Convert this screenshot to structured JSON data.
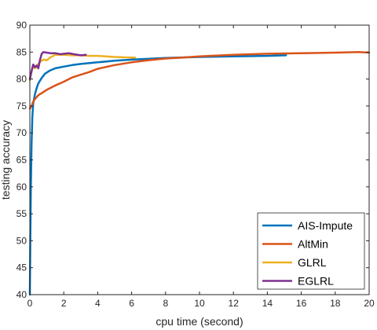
{
  "chart_data": {
    "type": "line",
    "title": "",
    "xlabel": "cpu time (second)",
    "ylabel": "testing accuracy",
    "xlim": [
      0,
      20
    ],
    "ylim": [
      40,
      90
    ],
    "xticks": [
      0,
      2,
      4,
      6,
      8,
      10,
      12,
      14,
      16,
      18,
      20
    ],
    "yticks": [
      40,
      45,
      50,
      55,
      60,
      65,
      70,
      75,
      80,
      85,
      90
    ],
    "grid": false,
    "legend_position": "bottom-right",
    "series": [
      {
        "name": "AIS-Impute",
        "color": "#0072BD",
        "x": [
          0.0,
          0.03,
          0.06,
          0.1,
          0.15,
          0.2,
          0.3,
          0.4,
          0.5,
          0.7,
          0.9,
          1.2,
          1.5,
          2.0,
          2.5,
          3.0,
          4.0,
          5.0,
          6.0,
          8.0,
          10.0,
          12.0,
          14.0,
          15.1
        ],
        "y": [
          40,
          50,
          60,
          68,
          73,
          75.5,
          77.2,
          78.3,
          79.2,
          80.2,
          81.0,
          81.6,
          82.0,
          82.3,
          82.6,
          82.8,
          83.1,
          83.4,
          83.6,
          83.9,
          84.1,
          84.2,
          84.3,
          84.4
        ]
      },
      {
        "name": "AltMin",
        "color": "#D95319",
        "x": [
          0.0,
          0.1,
          0.2,
          0.3,
          0.5,
          0.8,
          1.0,
          1.5,
          2.0,
          2.5,
          3.0,
          3.5,
          4.0,
          5.0,
          6.0,
          7.0,
          8.0,
          9.0,
          10.0,
          12.0,
          14.0,
          16.0,
          18.0,
          19.4,
          20.0
        ],
        "y": [
          74.5,
          75.0,
          75.8,
          76.3,
          77.0,
          77.6,
          78.0,
          78.8,
          79.5,
          80.3,
          80.8,
          81.3,
          81.9,
          82.6,
          83.1,
          83.5,
          83.8,
          84.0,
          84.2,
          84.5,
          84.7,
          84.8,
          84.9,
          85.0,
          84.9
        ]
      },
      {
        "name": "GLRL",
        "color": "#EDB120",
        "x": [
          0.0,
          0.1,
          0.2,
          0.3,
          0.45,
          0.6,
          0.8,
          1.0,
          1.2,
          1.5,
          2.0,
          2.5,
          3.0,
          3.5,
          4.0,
          5.0,
          6.0,
          6.2
        ],
        "y": [
          79.8,
          81.4,
          82.5,
          82.0,
          82.6,
          83.2,
          83.6,
          83.5,
          84.0,
          84.5,
          84.5,
          84.4,
          84.4,
          84.3,
          84.3,
          84.1,
          84.0,
          84.0
        ]
      },
      {
        "name": "EGLRL",
        "color": "#7E2F8E",
        "x": [
          0.0,
          0.1,
          0.2,
          0.3,
          0.4,
          0.5,
          0.6,
          0.7,
          0.8,
          1.0,
          1.2,
          1.5,
          1.8,
          2.0,
          2.3,
          2.6,
          3.0,
          3.3
        ],
        "y": [
          80.0,
          81.5,
          82.7,
          82.2,
          82.5,
          82.0,
          83.6,
          84.7,
          85.0,
          84.9,
          84.8,
          84.8,
          84.6,
          84.7,
          84.8,
          84.6,
          84.4,
          84.5
        ]
      }
    ]
  }
}
